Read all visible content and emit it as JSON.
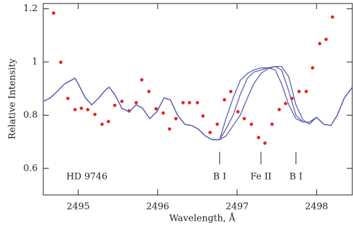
{
  "chart_data": {
    "type": "scatter",
    "xlabel": "Wavelength, Å",
    "ylabel": "Relative Intensity",
    "xlim": [
      2494.56,
      2498.45
    ],
    "ylim": [
      0.5,
      1.22
    ],
    "xticks": [
      2495,
      2496,
      2497,
      2498
    ],
    "yticks": [
      0.6,
      0.8,
      1,
      1.2
    ],
    "annotations": [
      {
        "text": "HD 9746"
      },
      {
        "text": "B I",
        "x": 2496.78
      },
      {
        "text": "Fe II",
        "x": 2497.3
      },
      {
        "text": "B I",
        "x": 2497.74
      }
    ],
    "series": [
      {
        "mode": "markers",
        "color": "#e8231f",
        "x": [
          2494.69,
          2494.78,
          2494.87,
          2494.96,
          2495.04,
          2495.12,
          2495.21,
          2495.3,
          2495.38,
          2495.46,
          2495.55,
          2495.64,
          2495.73,
          2495.8,
          2495.89,
          2495.98,
          2496.07,
          2496.15,
          2496.23,
          2496.32,
          2496.4,
          2496.5,
          2496.57,
          2496.66,
          2496.75,
          2496.84,
          2496.92,
          2497.01,
          2497.09,
          2497.18,
          2497.27,
          2497.35,
          2497.44,
          2497.53,
          2497.61,
          2497.69,
          2497.78,
          2497.87,
          2497.95,
          2498.04,
          2498.12,
          2498.2
        ],
        "values": [
          1.184,
          0.999,
          0.863,
          0.821,
          0.826,
          0.821,
          0.803,
          0.766,
          0.776,
          0.837,
          0.852,
          0.816,
          0.847,
          0.933,
          0.889,
          0.824,
          0.808,
          0.748,
          0.787,
          0.847,
          0.847,
          0.847,
          0.797,
          0.735,
          0.766,
          0.858,
          0.889,
          0.813,
          0.787,
          0.766,
          0.716,
          0.695,
          0.766,
          0.821,
          0.844,
          0.863,
          0.889,
          0.889,
          0.978,
          1.069,
          1.085,
          1.169
        ]
      },
      {
        "mode": "lines",
        "color": "#5b5fb0",
        "x": [
          2494.56,
          2494.65,
          2494.74,
          2494.83,
          2494.91,
          2494.96,
          2495.0,
          2495.09,
          2495.17,
          2495.26,
          2495.35,
          2495.39,
          2495.46,
          2495.55,
          2495.64,
          2495.73,
          2495.81,
          2495.9,
          2495.99,
          2496.08,
          2496.16,
          2496.25,
          2496.34,
          2496.43,
          2496.51,
          2496.6,
          2496.69,
          2496.78,
          2496.86,
          2496.95,
          2497.04,
          2497.13,
          2497.21,
          2497.3,
          2497.39,
          2497.48,
          2497.56,
          2497.65,
          2497.74,
          2497.83,
          2497.91,
          2498.0,
          2498.09,
          2498.18,
          2498.26,
          2498.35,
          2498.45
        ],
        "values": [
          0.852,
          0.865,
          0.891,
          0.918,
          0.931,
          0.939,
          0.918,
          0.865,
          0.839,
          0.865,
          0.897,
          0.905,
          0.878,
          0.826,
          0.813,
          0.839,
          0.826,
          0.787,
          0.813,
          0.865,
          0.858,
          0.8,
          0.766,
          0.761,
          0.748,
          0.722,
          0.708,
          0.708,
          0.787,
          0.865,
          0.931,
          0.957,
          0.97,
          0.978,
          0.978,
          0.97,
          0.918,
          0.839,
          0.787,
          0.774,
          0.774,
          0.792,
          0.766,
          0.761,
          0.8,
          0.865,
          0.905
        ]
      },
      {
        "mode": "lines",
        "color": "#5b5fb0",
        "x": [
          2494.56,
          2494.65,
          2494.74,
          2494.83,
          2494.91,
          2494.96,
          2495.0,
          2495.09,
          2495.17,
          2495.26,
          2495.35,
          2495.39,
          2495.46,
          2495.55,
          2495.64,
          2495.73,
          2495.81,
          2495.9,
          2495.99,
          2496.08,
          2496.16,
          2496.25,
          2496.34,
          2496.43,
          2496.51,
          2496.6,
          2496.69,
          2496.78,
          2496.86,
          2496.95,
          2497.04,
          2497.13,
          2497.21,
          2497.3,
          2497.39,
          2497.48,
          2497.56,
          2497.65,
          2497.74,
          2497.83,
          2497.91,
          2498.0,
          2498.09,
          2498.18,
          2498.26,
          2498.35,
          2498.45
        ],
        "values": [
          0.852,
          0.865,
          0.891,
          0.918,
          0.931,
          0.939,
          0.918,
          0.865,
          0.839,
          0.865,
          0.897,
          0.905,
          0.878,
          0.826,
          0.813,
          0.839,
          0.826,
          0.787,
          0.813,
          0.865,
          0.858,
          0.8,
          0.766,
          0.761,
          0.748,
          0.722,
          0.708,
          0.708,
          0.748,
          0.8,
          0.878,
          0.939,
          0.962,
          0.97,
          0.978,
          0.983,
          0.97,
          0.891,
          0.8,
          0.774,
          0.774,
          0.792,
          0.766,
          0.761,
          0.8,
          0.865,
          0.905
        ]
      },
      {
        "mode": "lines",
        "color": "#5b5fb0",
        "x": [
          2494.56,
          2494.65,
          2494.74,
          2494.83,
          2494.91,
          2494.96,
          2495.0,
          2495.09,
          2495.17,
          2495.26,
          2495.35,
          2495.39,
          2495.46,
          2495.55,
          2495.64,
          2495.73,
          2495.81,
          2495.9,
          2495.99,
          2496.08,
          2496.16,
          2496.25,
          2496.34,
          2496.43,
          2496.51,
          2496.6,
          2496.69,
          2496.78,
          2496.86,
          2496.95,
          2497.04,
          2497.13,
          2497.21,
          2497.3,
          2497.39,
          2497.48,
          2497.56,
          2497.65,
          2497.74,
          2497.83,
          2497.91,
          2498.0,
          2498.09,
          2498.18,
          2498.26,
          2498.35,
          2498.45
        ],
        "values": [
          0.852,
          0.865,
          0.891,
          0.918,
          0.931,
          0.939,
          0.918,
          0.865,
          0.839,
          0.865,
          0.897,
          0.905,
          0.878,
          0.826,
          0.813,
          0.839,
          0.826,
          0.787,
          0.813,
          0.865,
          0.858,
          0.8,
          0.766,
          0.761,
          0.748,
          0.722,
          0.708,
          0.708,
          0.722,
          0.761,
          0.8,
          0.865,
          0.918,
          0.957,
          0.975,
          0.983,
          0.983,
          0.944,
          0.839,
          0.782,
          0.766,
          0.792,
          0.766,
          0.761,
          0.8,
          0.865,
          0.905
        ]
      }
    ]
  }
}
